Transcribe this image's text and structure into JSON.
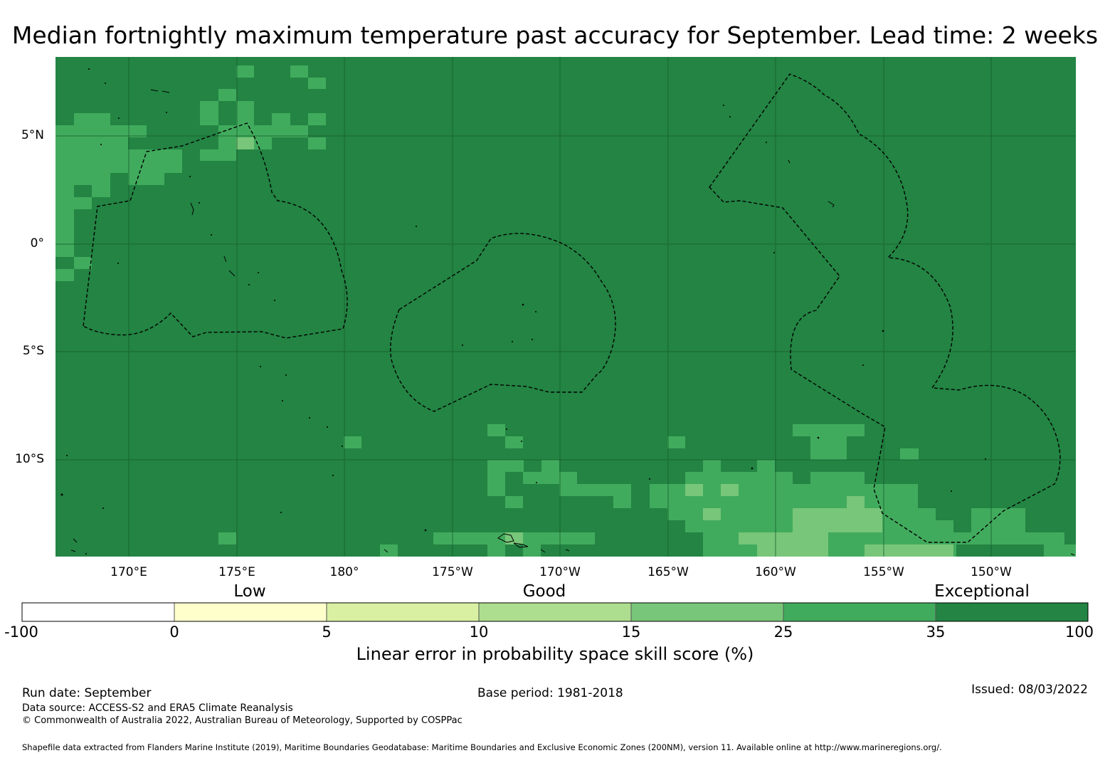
{
  "title": "Median fortnightly maximum temperature past accuracy for September. Lead time: 2 weeks",
  "map": {
    "latitude_labels": [
      "5°N",
      "0°",
      "5°S",
      "10°S"
    ],
    "longitude_labels": [
      "170°E",
      "175°E",
      "180°",
      "175°W",
      "170°W",
      "165°W",
      "160°W",
      "155°W",
      "150°W"
    ],
    "extent": {
      "lon_min": 166.6,
      "lon_max": 214.0,
      "lat_min": -14.7,
      "lat_max": 8.5
    },
    "background_category": "35 to 100",
    "colors": {
      "c35_100": "#238443",
      "c25_35": "#41ab5d",
      "c15_25": "#78c679",
      "c10_15": "#addd8e",
      "c5_10": "#d9f0a3",
      "c0_5": "#ffffcc",
      "cneg": "#ffffff"
    }
  },
  "colorbar": {
    "categories": [
      "Low",
      "Good",
      "Exceptional"
    ],
    "ticks": [
      "-100",
      "0",
      "5",
      "10",
      "15",
      "25",
      "35",
      "100"
    ],
    "colors": [
      "#ffffff",
      "#ffffcc",
      "#d9f0a3",
      "#addd8e",
      "#78c679",
      "#41ab5d",
      "#238443"
    ],
    "label": "Linear error in probability space skill score (%)"
  },
  "footer": {
    "run_date": "Run date: September",
    "base_period": "Base period: 1981-2018",
    "issued": "Issued: 08/03/2022",
    "data_source": "Data source: ACCESS-S2 and ERA5 Climate Reanalysis",
    "copyright": "© Commonwealth of Australia 2022, Australian Bureau of Meteorology, Supported by COSPPac",
    "shapefile_note": "Shapefile data extracted from Flanders Marine Institute (2019), Maritime Boundaries Geodatabase: Maritime Boundaries and Exclusive Economic Zones (200NM), version 11. Available online at http://www.marineregions.org/."
  }
}
